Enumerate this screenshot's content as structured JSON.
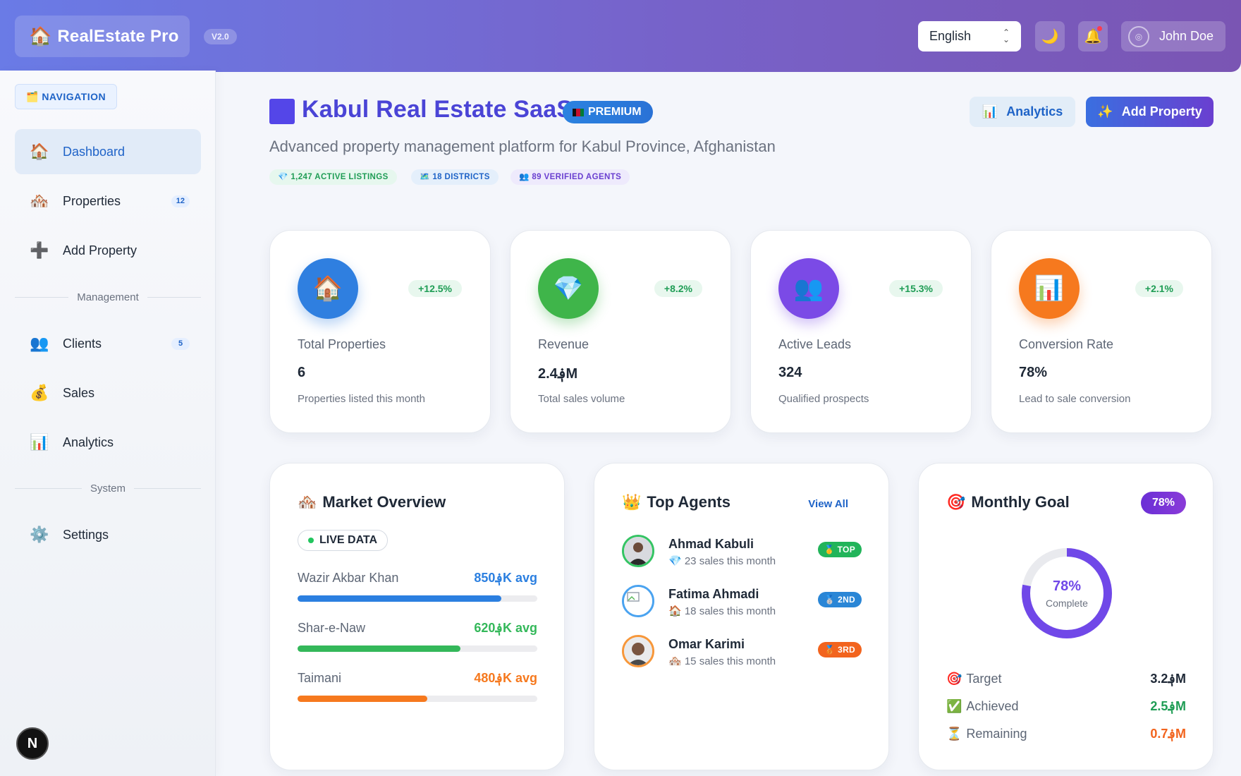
{
  "header": {
    "logo_emoji": "🏠",
    "app_name": "RealEstate Pro",
    "version": "V2.0",
    "language": "English",
    "theme_emoji": "🌙",
    "bell_emoji": "🔔",
    "user_name": "John Doe"
  },
  "sidebar": {
    "nav_label": "🗂️ NAVIGATION",
    "items": [
      {
        "icon": "🏠",
        "label": "Dashboard",
        "active": true
      },
      {
        "icon": "🏘️",
        "label": "Properties",
        "count": "12"
      },
      {
        "icon": "➕",
        "label": "Add Property"
      },
      {
        "icon": "👥",
        "label": "Clients",
        "count": "5"
      },
      {
        "icon": "💰",
        "label": "Sales"
      },
      {
        "icon": "📊",
        "label": "Analytics"
      },
      {
        "icon": "⚙️",
        "label": "Settings"
      }
    ],
    "sections": [
      "Management",
      "System"
    ],
    "n_badge": "N"
  },
  "page": {
    "title": "Kabul Real Estate SaaS",
    "premium": "PREMIUM",
    "subtitle": "Advanced property management platform for Kabul Province, Afghanistan",
    "chips": [
      "💎 1,247 ACTIVE LISTINGS",
      "🗺️ 18 DISTRICTS",
      "👥 89 VERIFIED AGENTS"
    ],
    "analytics_btn": "Analytics",
    "analytics_icon": "📊",
    "add_btn": "Add Property",
    "add_icon": "✨"
  },
  "stats": [
    {
      "icon": "🏠",
      "delta": "+12.5%",
      "label": "Total Properties",
      "value": "6",
      "desc": "Properties listed this month",
      "color": "#2f7fe0"
    },
    {
      "icon": "💎",
      "delta": "+8.2%",
      "label": "Revenue",
      "value": "؋2.4M",
      "desc": "Total sales volume",
      "color": "#3fb54a"
    },
    {
      "icon": "👥",
      "delta": "+15.3%",
      "label": "Active Leads",
      "value": "324",
      "desc": "Qualified prospects",
      "color": "#7b4ae6"
    },
    {
      "icon": "📊",
      "delta": "+2.1%",
      "label": "Conversion Rate",
      "value": "78%",
      "desc": "Lead to sale conversion",
      "color": "#f6791e"
    }
  ],
  "market": {
    "icon": "🏘️",
    "title": "Market Overview",
    "live": "LIVE DATA",
    "rows": [
      {
        "name": "Wazir Akbar Khan",
        "price": "؋850K avg",
        "fill": 0.85,
        "color": "#2b7fe0"
      },
      {
        "name": "Shar-e-Naw",
        "price": "؋620K avg",
        "fill": 0.68,
        "color": "#34b85a"
      },
      {
        "name": "Taimani",
        "price": "؋480K avg",
        "fill": 0.54,
        "color": "#f6791e"
      }
    ]
  },
  "agents": {
    "icon": "👑",
    "title": "Top Agents",
    "view_all": "View All",
    "list": [
      {
        "name": "Ahmad Kabuli",
        "sub": "💎 23 sales this month",
        "rank": "🥇 TOP",
        "rank_color": "#22b45a",
        "ring": "#34c463"
      },
      {
        "name": "Fatima Ahmadi",
        "sub": "🏠 18 sales this month",
        "rank": "🥈 2ND",
        "rank_color": "#2a86d6",
        "ring": "#4aa3f0"
      },
      {
        "name": "Omar Karimi",
        "sub": "🏘️ 15 sales this month",
        "rank": "🥉 3RD",
        "rank_color": "#f2641e",
        "ring": "#f7973a"
      }
    ]
  },
  "goal": {
    "icon": "🎯",
    "title": "Monthly Goal",
    "badge": "78%",
    "percent": 0.78,
    "center_pct": "78%",
    "center_label": "Complete",
    "rows": [
      {
        "icon": "🎯",
        "label": "Target",
        "value": "؋3.2M",
        "color": "#1f2937"
      },
      {
        "icon": "✅",
        "label": "Achieved",
        "value": "؋2.5M",
        "color": "#1f9d55"
      },
      {
        "icon": "⏳",
        "label": "Remaining",
        "value": "؋0.7M",
        "color": "#f2641e"
      }
    ]
  }
}
